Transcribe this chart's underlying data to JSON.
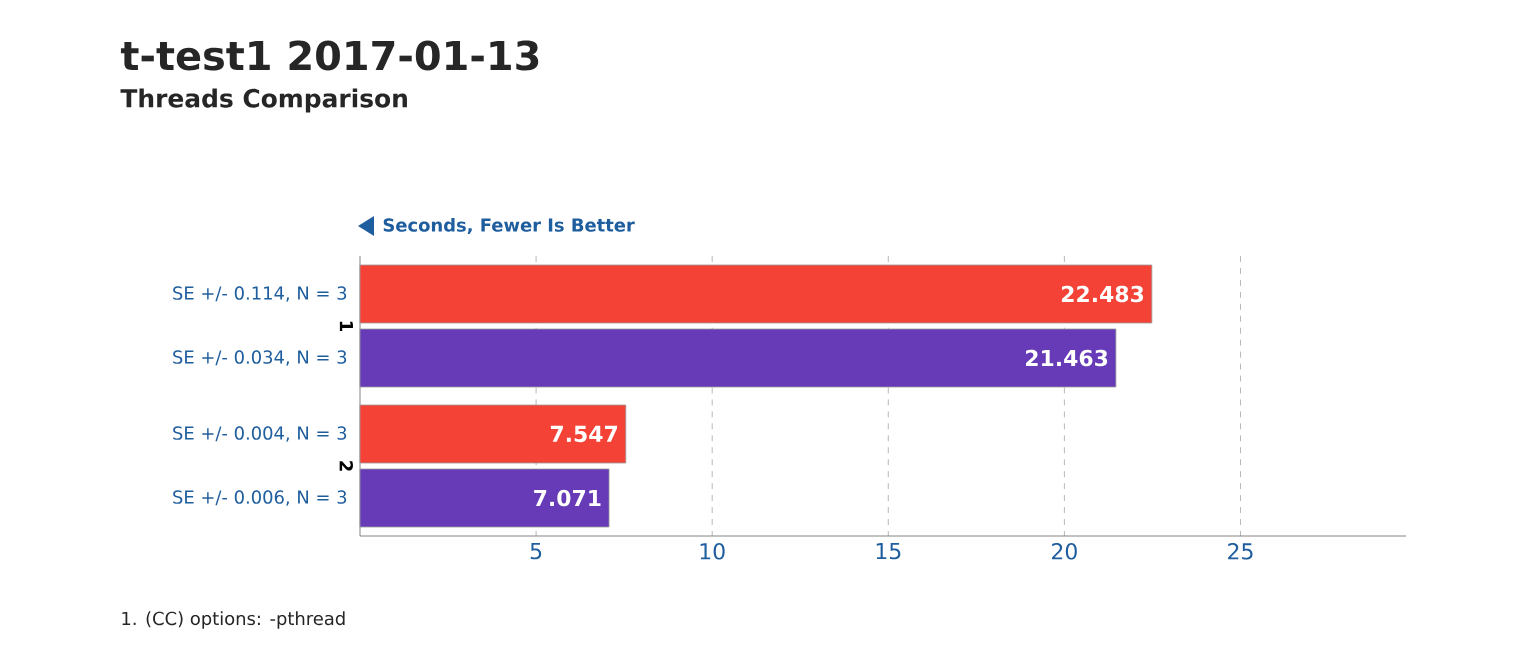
{
  "chart_data": {
    "type": "bar",
    "orientation": "horizontal",
    "title": "t-test1 2017-01-13",
    "subtitle": "Threads Comparison",
    "categories": [
      "1",
      "2"
    ],
    "series": [
      {
        "color": "#f44336",
        "values": [
          22.483,
          7.547
        ]
      },
      {
        "color": "#673ab7",
        "values": [
          21.463,
          7.071
        ]
      }
    ],
    "xlim": [
      0,
      29.7
    ],
    "xticks": [
      5,
      10,
      15,
      20,
      25
    ],
    "grid": "x",
    "data_labels": true,
    "annotations": [
      "SE +/- 0.114, N = 3",
      "SE +/- 0.034, N = 3",
      "SE +/- 0.004, N = 3",
      "SE +/- 0.006, N = 3",
      "Seconds, Fewer Is Better",
      "1. (CC) options: -pthread"
    ]
  }
}
